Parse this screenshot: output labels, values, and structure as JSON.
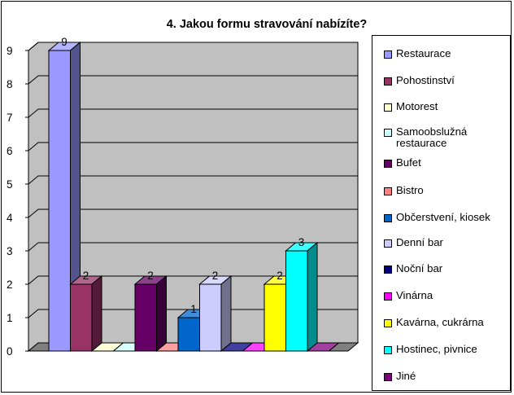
{
  "chart_data": {
    "type": "bar",
    "title": "4. Jakou formu stravování nabízíte?",
    "xlabel": "",
    "ylabel": "",
    "ylim": [
      0,
      9
    ],
    "yticks": [
      "0",
      "1",
      "2",
      "3",
      "4",
      "5",
      "6",
      "7",
      "8",
      "9"
    ],
    "grid": true,
    "legend_position": "right",
    "style": "3d-clustered-column",
    "series": [
      {
        "name": "Restaurace",
        "value": 9,
        "label": "9",
        "color": "#9999ff"
      },
      {
        "name": "Pohostinství",
        "value": 2,
        "label": "2",
        "color": "#993366"
      },
      {
        "name": "Motorest",
        "value": 0,
        "label": "",
        "color": "#ffffcc"
      },
      {
        "name": "Samoobslužná restaurace",
        "value": 0,
        "label": "",
        "color": "#ccffff"
      },
      {
        "name": "Bufet",
        "value": 2,
        "label": "2",
        "color": "#660066"
      },
      {
        "name": "Bistro",
        "value": 0,
        "label": "",
        "color": "#ff8080"
      },
      {
        "name": "Občerstvení, kiosek",
        "value": 1,
        "label": "1",
        "color": "#0066cc"
      },
      {
        "name": "Denní bar",
        "value": 2,
        "label": "2",
        "color": "#ccccff"
      },
      {
        "name": "Noční bar",
        "value": 0,
        "label": "",
        "color": "#000080"
      },
      {
        "name": "Vinárna",
        "value": 0,
        "label": "",
        "color": "#ff00ff"
      },
      {
        "name": "Kavárna, cukrárna",
        "value": 2,
        "label": "2",
        "color": "#ffff00"
      },
      {
        "name": "Hostinec, pivnice",
        "value": 3,
        "label": "3",
        "color": "#00ffff"
      },
      {
        "name": "Jiné",
        "value": 0,
        "label": "",
        "color": "#800080"
      }
    ]
  },
  "colors": {
    "wall": "#c0c0c0",
    "floor": "#808080",
    "gridline": "#000000"
  }
}
